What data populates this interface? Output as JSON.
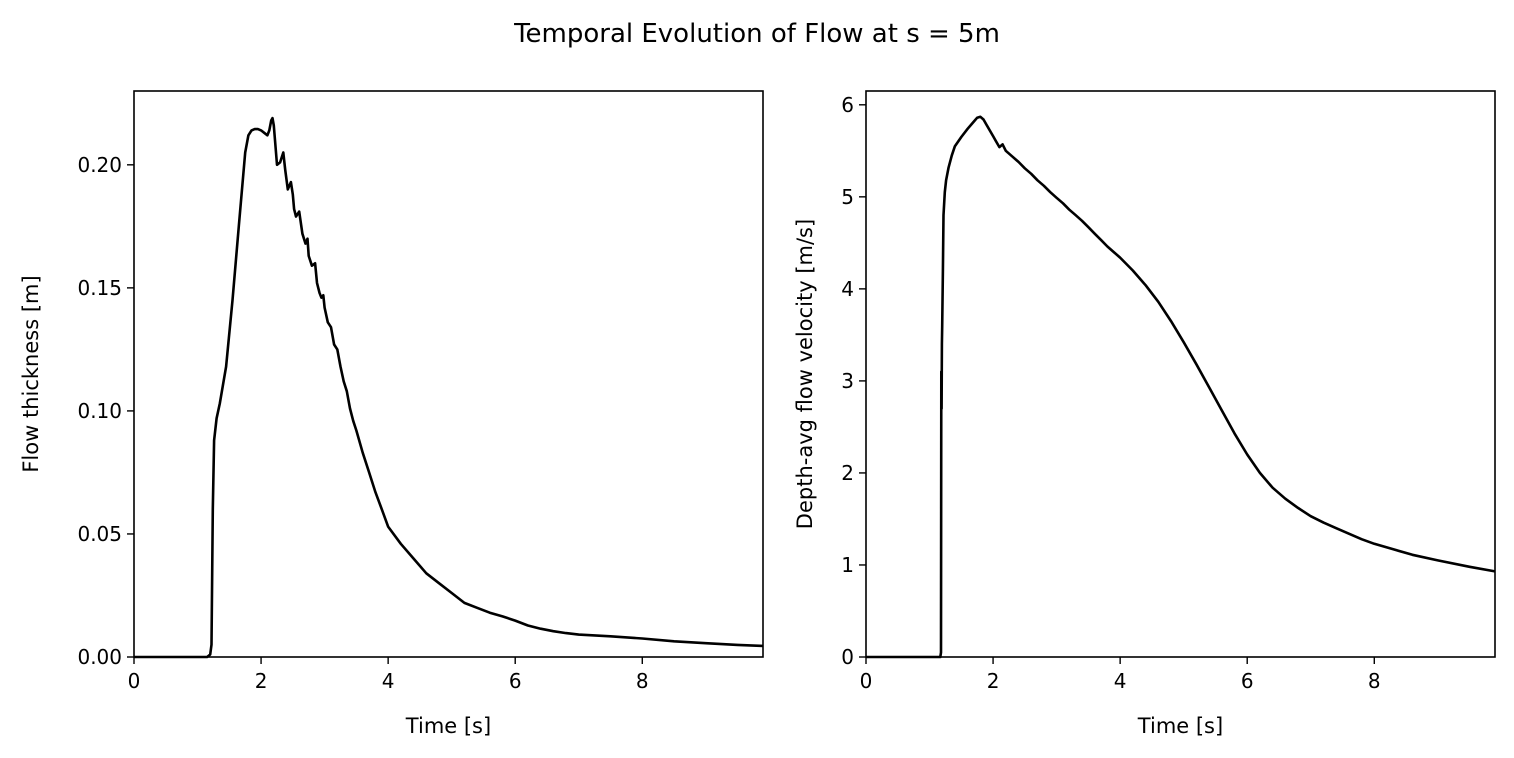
{
  "figure": {
    "title": "Temporal Evolution of Flow at s = 5m"
  },
  "chart_data": [
    {
      "type": "line",
      "xlabel": "Time [s]",
      "ylabel": "Flow thickness [m]",
      "xlim": [
        0,
        9.9
      ],
      "ylim": [
        0,
        0.23
      ],
      "xticks": [
        0,
        2,
        4,
        6,
        8
      ],
      "xtick_labels": [
        "0",
        "2",
        "4",
        "6",
        "8"
      ],
      "yticks": [
        0,
        0.05,
        0.1,
        0.15,
        0.2
      ],
      "ytick_labels": [
        "0.00",
        "0.05",
        "0.10",
        "0.15",
        "0.20"
      ],
      "grid": false,
      "series": [
        {
          "color": "#000000",
          "x": [
            0,
            1.15,
            1.2,
            1.22,
            1.24,
            1.26,
            1.3,
            1.35,
            1.45,
            1.55,
            1.65,
            1.75,
            1.8,
            1.85,
            1.9,
            1.95,
            2.0,
            2.05,
            2.1,
            2.13,
            2.16,
            2.18,
            2.2,
            2.22,
            2.25,
            2.3,
            2.35,
            2.38,
            2.42,
            2.47,
            2.5,
            2.52,
            2.55,
            2.6,
            2.65,
            2.7,
            2.73,
            2.75,
            2.8,
            2.85,
            2.88,
            2.92,
            2.95,
            2.98,
            3.0,
            3.05,
            3.1,
            3.15,
            3.2,
            3.25,
            3.3,
            3.35,
            3.4,
            3.45,
            3.5,
            3.6,
            3.7,
            3.8,
            3.9,
            4.0,
            4.2,
            4.4,
            4.6,
            4.8,
            5.0,
            5.2,
            5.4,
            5.6,
            5.8,
            6.0,
            6.2,
            6.4,
            6.6,
            6.8,
            7.0,
            7.5,
            8.0,
            8.5,
            9.0,
            9.5,
            9.9
          ],
          "y": [
            0,
            0,
            0.001,
            0.005,
            0.06,
            0.088,
            0.097,
            0.103,
            0.118,
            0.145,
            0.175,
            0.205,
            0.212,
            0.214,
            0.2145,
            0.2145,
            0.214,
            0.213,
            0.212,
            0.214,
            0.218,
            0.219,
            0.216,
            0.21,
            0.2,
            0.201,
            0.205,
            0.198,
            0.19,
            0.193,
            0.188,
            0.182,
            0.179,
            0.181,
            0.172,
            0.168,
            0.17,
            0.163,
            0.159,
            0.16,
            0.152,
            0.148,
            0.146,
            0.147,
            0.142,
            0.136,
            0.134,
            0.127,
            0.125,
            0.118,
            0.112,
            0.108,
            0.101,
            0.096,
            0.092,
            0.083,
            0.075,
            0.067,
            0.06,
            0.053,
            0.046,
            0.04,
            0.034,
            0.03,
            0.026,
            0.022,
            0.02,
            0.018,
            0.0165,
            0.0148,
            0.0128,
            0.0115,
            0.0105,
            0.0097,
            0.0091,
            0.0084,
            0.0075,
            0.0064,
            0.0056,
            0.0049,
            0.0045
          ]
        }
      ]
    },
    {
      "type": "line",
      "xlabel": "Time [s]",
      "ylabel": "Depth-avg flow velocity [m/s]",
      "xlim": [
        0,
        9.9
      ],
      "ylim": [
        0,
        6.15
      ],
      "xticks": [
        0,
        2,
        4,
        6,
        8
      ],
      "xtick_labels": [
        "0",
        "2",
        "4",
        "6",
        "8"
      ],
      "yticks": [
        0,
        1,
        2,
        3,
        4,
        5,
        6
      ],
      "ytick_labels": [
        "0",
        "1",
        "2",
        "3",
        "4",
        "5",
        "6"
      ],
      "grid": false,
      "series": [
        {
          "color": "#000000",
          "x": [
            0,
            1.17,
            1.18,
            1.185,
            1.19,
            1.195,
            1.2,
            1.21,
            1.22,
            1.24,
            1.26,
            1.3,
            1.35,
            1.4,
            1.5,
            1.6,
            1.7,
            1.75,
            1.8,
            1.85,
            1.9,
            1.95,
            2.0,
            2.05,
            2.1,
            2.15,
            2.2,
            2.3,
            2.4,
            2.5,
            2.6,
            2.7,
            2.8,
            2.9,
            3.0,
            3.1,
            3.2,
            3.3,
            3.4,
            3.5,
            3.6,
            3.7,
            3.8,
            3.9,
            4.0,
            4.2,
            4.4,
            4.6,
            4.8,
            5.0,
            5.2,
            5.4,
            5.6,
            5.8,
            6.0,
            6.2,
            6.4,
            6.6,
            6.8,
            7.0,
            7.2,
            7.4,
            7.6,
            7.8,
            8.0,
            8.3,
            8.6,
            9.0,
            9.5,
            9.9
          ],
          "y": [
            0,
            0,
            0.05,
            3.1,
            2.7,
            3.4,
            3.6,
            4.2,
            4.8,
            5.05,
            5.18,
            5.32,
            5.45,
            5.55,
            5.65,
            5.74,
            5.82,
            5.86,
            5.87,
            5.84,
            5.78,
            5.72,
            5.66,
            5.6,
            5.54,
            5.57,
            5.5,
            5.44,
            5.38,
            5.31,
            5.25,
            5.18,
            5.12,
            5.05,
            4.99,
            4.93,
            4.86,
            4.8,
            4.74,
            4.67,
            4.6,
            4.53,
            4.46,
            4.4,
            4.34,
            4.2,
            4.04,
            3.86,
            3.65,
            3.42,
            3.18,
            2.93,
            2.68,
            2.43,
            2.2,
            2.0,
            1.84,
            1.72,
            1.62,
            1.53,
            1.46,
            1.4,
            1.34,
            1.28,
            1.23,
            1.17,
            1.11,
            1.05,
            0.98,
            0.93
          ]
        }
      ]
    }
  ]
}
